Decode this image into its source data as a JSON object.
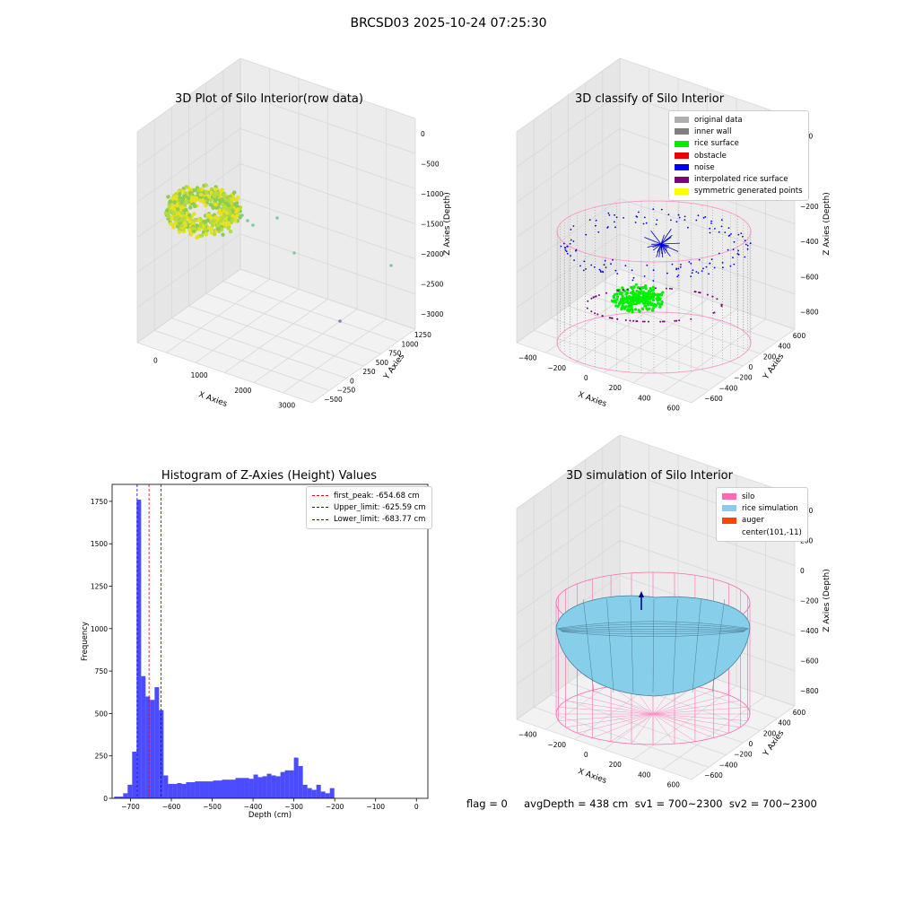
{
  "suptitle": "BRCSD03 2025-10-24 07:25:30",
  "panels": {
    "raw": {
      "title": "3D Plot of Silo Interior(row data)",
      "xlabel": "X Axies",
      "ylabel": "Y Axies",
      "zlabel": "Z Axies (Depth)",
      "xticks": [
        "0",
        "1000",
        "2000",
        "3000"
      ],
      "yticks": [
        "1250",
        "1000",
        "750",
        "500",
        "250",
        "0",
        "−250",
        "−500"
      ],
      "zticks": [
        "0",
        "−500",
        "−1000",
        "−1500",
        "−2000",
        "−2500",
        "−3000"
      ]
    },
    "classify": {
      "title": "3D classify of Silo Interior",
      "xlabel": "X Axies",
      "ylabel": "Y Axies",
      "zlabel": "Z Axies (Depth)",
      "xticks": [
        "−400",
        "−200",
        "0",
        "200",
        "400",
        "600"
      ],
      "yticks": [
        "600",
        "400",
        "200",
        "0",
        "−200",
        "−400",
        "−600"
      ],
      "zticks": [
        "200",
        "0",
        "−200",
        "−400",
        "−600",
        "−800"
      ],
      "legend": [
        {
          "label": "original data",
          "color": "#b0b0b0"
        },
        {
          "label": "inner wall",
          "color": "#808080"
        },
        {
          "label": "rice surface",
          "color": "#00ee00"
        },
        {
          "label": "obstacle",
          "color": "#ee0000"
        },
        {
          "label": "noise",
          "color": "#0000ee"
        },
        {
          "label": "interpolated rice surface",
          "color": "#800080"
        },
        {
          "label": "symmetric generated points",
          "color": "#ffff00"
        }
      ]
    },
    "simulation": {
      "title": "3D simulation of Silo Interior",
      "xlabel": "X Axies",
      "ylabel": "Y Axies",
      "zlabel": "Z Axies (Depth)",
      "xticks": [
        "−400",
        "−200",
        "0",
        "200",
        "400",
        "600"
      ],
      "yticks": [
        "600",
        "400",
        "200",
        "0",
        "−200",
        "−400",
        "−600"
      ],
      "zticks": [
        "400",
        "200",
        "0",
        "−200",
        "−400",
        "−600",
        "−800"
      ],
      "legend": [
        {
          "label": "silo",
          "color": "#ff69b4"
        },
        {
          "label": "rice simulation",
          "color": "#87ceeb"
        },
        {
          "label": "auger",
          "color": "#ff4500"
        },
        {
          "label": "center(101,-11)",
          "color": ""
        }
      ]
    }
  },
  "chart_data": {
    "type": "bar",
    "title": "Histogram of Z-Axies (Height) Values",
    "xlabel": "Depth (cm)",
    "ylabel": "Frequency",
    "xlim": [
      -745,
      28
    ],
    "ylim": [
      0,
      1850
    ],
    "xticks": [
      -700,
      -600,
      -500,
      -400,
      -300,
      -200,
      -100,
      0
    ],
    "yticks": [
      0,
      250,
      500,
      750,
      1000,
      1250,
      1500,
      1750
    ],
    "bar_color": "#0000ff",
    "bin_edges_start": -740,
    "bin_width": 11,
    "values": [
      10,
      10,
      30,
      80,
      275,
      1760,
      720,
      600,
      580,
      655,
      520,
      135,
      85,
      85,
      90,
      85,
      95,
      95,
      100,
      100,
      100,
      100,
      105,
      105,
      110,
      110,
      110,
      120,
      120,
      120,
      115,
      140,
      125,
      130,
      145,
      135,
      130,
      155,
      165,
      165,
      240,
      190,
      80,
      60,
      50,
      80,
      40,
      30,
      60
    ],
    "vlines": [
      {
        "label": "first_peak: -654.68 cm",
        "x": -654.68,
        "color": "#ff0000"
      },
      {
        "label": "Upper_limit: -625.59 cm",
        "x": -625.59,
        "color": "#0000ff"
      },
      {
        "label": "Lower_limit: -683.77 cm",
        "x": -683.77,
        "color": "#0000ff"
      }
    ],
    "legend": "upper right"
  },
  "footer": "flag = 0     avgDepth = 438 cm  sv1 = 700~2300  sv2 = 700~2300"
}
